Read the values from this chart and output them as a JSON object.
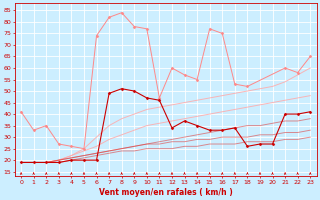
{
  "x": [
    0,
    1,
    2,
    3,
    4,
    5,
    6,
    7,
    8,
    9,
    10,
    11,
    12,
    13,
    14,
    15,
    16,
    17,
    18,
    19,
    20,
    21,
    22,
    23
  ],
  "background_color": "#cceeff",
  "grid_color": "#ffffff",
  "xlabel": "Vent moyen/en rafales ( km/h )",
  "ylabel_ticks": [
    15,
    20,
    25,
    30,
    35,
    40,
    45,
    50,
    55,
    60,
    65,
    70,
    75,
    80,
    85
  ],
  "ylim": [
    13,
    88
  ],
  "xlim": [
    -0.5,
    23.5
  ],
  "series": [
    {
      "color": "#ff8888",
      "alpha": 1.0,
      "linewidth": 0.7,
      "marker": "D",
      "markersize": 1.5,
      "values": [
        41,
        33,
        35,
        27,
        26,
        25,
        74,
        82,
        84,
        78,
        77,
        47,
        60,
        57,
        55,
        77,
        75,
        53,
        52,
        null,
        null,
        60,
        58,
        65
      ]
    },
    {
      "color": "#cc0000",
      "alpha": 1.0,
      "linewidth": 0.8,
      "marker": "D",
      "markersize": 1.5,
      "values": [
        19,
        19,
        19,
        19,
        20,
        20,
        20,
        49,
        51,
        50,
        47,
        46,
        34,
        37,
        35,
        33,
        33,
        34,
        26,
        27,
        27,
        40,
        40,
        41
      ]
    },
    {
      "color": "#ffaaaa",
      "alpha": 0.85,
      "linewidth": 0.7,
      "marker": null,
      "markersize": 0,
      "values": [
        19,
        19,
        19,
        20,
        22,
        25,
        30,
        35,
        38,
        40,
        42,
        43,
        44,
        45,
        46,
        47,
        48,
        49,
        50,
        51,
        52,
        54,
        57,
        60
      ]
    },
    {
      "color": "#ffaaaa",
      "alpha": 0.85,
      "linewidth": 0.7,
      "marker": null,
      "markersize": 0,
      "values": [
        19,
        19,
        19,
        20,
        22,
        24,
        26,
        29,
        31,
        33,
        35,
        36,
        37,
        38,
        39,
        40,
        41,
        42,
        43,
        44,
        45,
        46,
        47,
        48
      ]
    },
    {
      "color": "#dd4444",
      "alpha": 0.6,
      "linewidth": 0.7,
      "marker": null,
      "markersize": 0,
      "values": [
        19,
        19,
        19,
        20,
        21,
        22,
        23,
        24,
        25,
        26,
        27,
        28,
        29,
        30,
        31,
        32,
        33,
        34,
        35,
        35,
        36,
        37,
        37,
        38
      ]
    },
    {
      "color": "#dd4444",
      "alpha": 0.6,
      "linewidth": 0.7,
      "marker": null,
      "markersize": 0,
      "values": [
        19,
        19,
        19,
        20,
        21,
        22,
        23,
        24,
        25,
        26,
        27,
        27,
        28,
        28,
        29,
        29,
        30,
        30,
        30,
        31,
        31,
        32,
        32,
        33
      ]
    },
    {
      "color": "#dd4444",
      "alpha": 0.6,
      "linewidth": 0.7,
      "marker": null,
      "markersize": 0,
      "values": [
        19,
        19,
        19,
        19,
        20,
        21,
        22,
        23,
        24,
        24,
        25,
        25,
        25,
        26,
        26,
        27,
        27,
        27,
        28,
        28,
        28,
        29,
        29,
        30
      ]
    }
  ],
  "tick_fontsize": 4.5,
  "xlabel_fontsize": 5.5,
  "xlabel_color": "#cc0000",
  "tick_color": "#cc0000",
  "spine_color": "#cc0000"
}
